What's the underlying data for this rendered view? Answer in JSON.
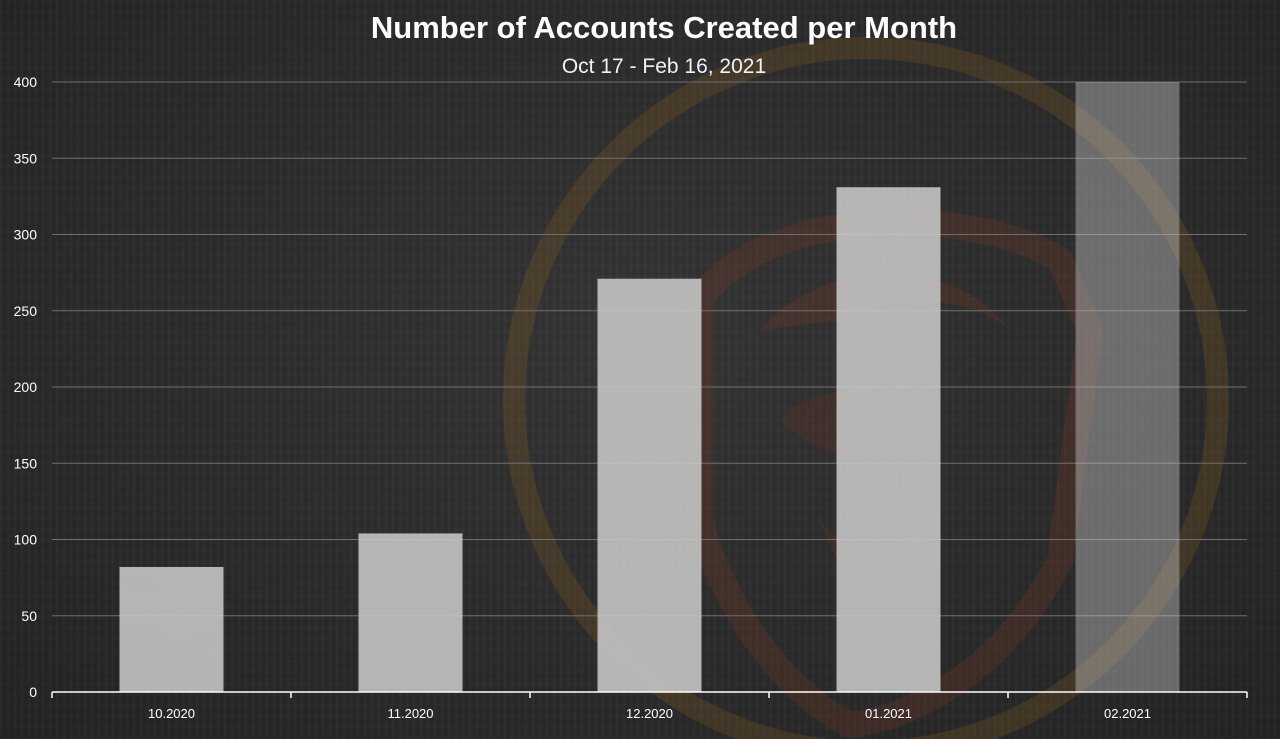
{
  "chart_data": {
    "type": "bar",
    "title": "Number of Accounts Created per Month",
    "subtitle": "Oct 17 - Feb 16, 2021",
    "xlabel": "",
    "ylabel": "",
    "categories": [
      "10.2020",
      "11.2020",
      "12.2020",
      "01.2021",
      "02.2021"
    ],
    "values": [
      82,
      104,
      271,
      331,
      400
    ],
    "ylim": [
      0,
      400
    ],
    "yticks": [
      0,
      50,
      100,
      150,
      200,
      250,
      300,
      350,
      400
    ],
    "grid": true,
    "legend": "none",
    "colors": {
      "bar": "#c8c8c8",
      "grid": "#6e6e6e",
      "axis": "#ffffff",
      "text": "#ffffff",
      "watermark": "#8a3b24"
    }
  }
}
